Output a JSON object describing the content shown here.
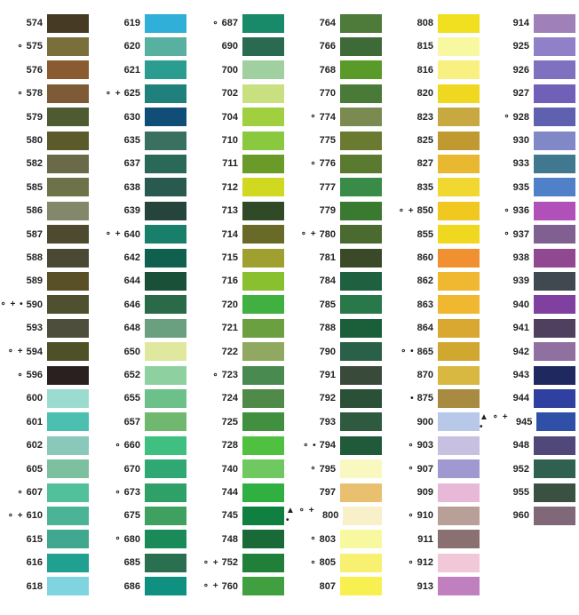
{
  "columns": [
    {
      "rows": [
        {
          "code": "574",
          "color": "#463a24"
        },
        {
          "marks": "∘",
          "code": "575",
          "color": "#7a6e3a"
        },
        {
          "code": "576",
          "color": "#8a5a30"
        },
        {
          "marks": "∘",
          "code": "578",
          "color": "#7e5a36"
        },
        {
          "code": "579",
          "color": "#4e5a30"
        },
        {
          "code": "580",
          "color": "#5a5a2a"
        },
        {
          "code": "582",
          "color": "#6a6a48"
        },
        {
          "code": "585",
          "color": "#6e7248"
        },
        {
          "code": "586",
          "color": "#84886a"
        },
        {
          "code": "587",
          "color": "#4e4a30"
        },
        {
          "code": "588",
          "color": "#4a4a34"
        },
        {
          "code": "589",
          "color": "#5a5028"
        },
        {
          "marks": "∘ + •",
          "code": "590",
          "color": "#4e5030"
        },
        {
          "code": "593",
          "color": "#4e4e3c"
        },
        {
          "marks": "∘ +",
          "code": "594",
          "color": "#4e5028"
        },
        {
          "marks": "∘",
          "code": "596",
          "color": "#2a2020"
        },
        {
          "code": "600",
          "color": "#9cdcd0"
        },
        {
          "code": "601",
          "color": "#4cc0b0"
        },
        {
          "code": "602",
          "color": "#8ac8bc"
        },
        {
          "code": "605",
          "color": "#7cc0a0"
        },
        {
          "marks": "∘",
          "code": "607",
          "color": "#52c09a"
        },
        {
          "marks": "∘ +",
          "code": "610",
          "color": "#4cb496"
        },
        {
          "code": "615",
          "color": "#40a890"
        },
        {
          "code": "616",
          "color": "#20a090"
        },
        {
          "code": "618",
          "color": "#80d4e0"
        }
      ]
    },
    {
      "rows": [
        {
          "code": "619",
          "color": "#30b0d8"
        },
        {
          "code": "620",
          "color": "#58b0a0"
        },
        {
          "code": "621",
          "color": "#2a9c90"
        },
        {
          "marks": "∘ +",
          "code": "625",
          "color": "#20807c"
        },
        {
          "code": "630",
          "color": "#104e78"
        },
        {
          "code": "635",
          "color": "#3a7060"
        },
        {
          "code": "637",
          "color": "#2a6858"
        },
        {
          "code": "638",
          "color": "#285a50"
        },
        {
          "code": "639",
          "color": "#24443c"
        },
        {
          "marks": "∘ +",
          "code": "640",
          "color": "#18806a"
        },
        {
          "code": "642",
          "color": "#106050"
        },
        {
          "code": "644",
          "color": "#1a5038"
        },
        {
          "code": "646",
          "color": "#2a6a48"
        },
        {
          "code": "648",
          "color": "#6aa080"
        },
        {
          "code": "650",
          "color": "#e0e8a0"
        },
        {
          "code": "652",
          "color": "#8ed0a0"
        },
        {
          "code": "655",
          "color": "#6cc08a"
        },
        {
          "code": "657",
          "color": "#70b870"
        },
        {
          "marks": "∘",
          "code": "660",
          "color": "#40c080"
        },
        {
          "code": "670",
          "color": "#30a874"
        },
        {
          "marks": "∘",
          "code": "673",
          "color": "#2ea068"
        },
        {
          "code": "675",
          "color": "#40a060"
        },
        {
          "marks": "∘",
          "code": "680",
          "color": "#1a8a58"
        },
        {
          "code": "685",
          "color": "#2a7050"
        },
        {
          "code": "686",
          "color": "#109080"
        }
      ]
    },
    {
      "rows": [
        {
          "marks": "∘",
          "code": "687",
          "color": "#188a6a"
        },
        {
          "code": "690",
          "color": "#2a6a50"
        },
        {
          "code": "700",
          "color": "#a0d0a0"
        },
        {
          "code": "702",
          "color": "#c8e080"
        },
        {
          "code": "704",
          "color": "#a0d040"
        },
        {
          "code": "710",
          "color": "#8ac840"
        },
        {
          "code": "711",
          "color": "#6a9a28"
        },
        {
          "code": "712",
          "color": "#d0d820"
        },
        {
          "code": "713",
          "color": "#304a28"
        },
        {
          "code": "714",
          "color": "#6a6a28"
        },
        {
          "code": "715",
          "color": "#a0a030"
        },
        {
          "code": "716",
          "color": "#88c030"
        },
        {
          "code": "720",
          "color": "#40b040"
        },
        {
          "code": "721",
          "color": "#6aa040"
        },
        {
          "code": "722",
          "color": "#90a860"
        },
        {
          "marks": "∘",
          "code": "723",
          "color": "#488a50"
        },
        {
          "code": "724",
          "color": "#508a48"
        },
        {
          "code": "725",
          "color": "#409040"
        },
        {
          "code": "728",
          "color": "#50c040"
        },
        {
          "code": "740",
          "color": "#70c860"
        },
        {
          "code": "744",
          "color": "#30b040"
        },
        {
          "code": "745",
          "color": "#108040"
        },
        {
          "code": "748",
          "color": "#1a6a38"
        },
        {
          "marks": "∘ +",
          "code": "752",
          "color": "#20803a"
        },
        {
          "marks": "∘ +",
          "code": "760",
          "color": "#40a040"
        }
      ]
    },
    {
      "rows": [
        {
          "code": "764",
          "color": "#4e7a3a"
        },
        {
          "code": "766",
          "color": "#3e6a38"
        },
        {
          "code": "768",
          "color": "#5a9a28"
        },
        {
          "code": "770",
          "color": "#4a7a38"
        },
        {
          "marks": "∘",
          "code": "774",
          "color": "#7a8a50"
        },
        {
          "code": "775",
          "color": "#6a7a30"
        },
        {
          "marks": "∘",
          "code": "776",
          "color": "#5a7a30"
        },
        {
          "code": "777",
          "color": "#3a8a48"
        },
        {
          "code": "779",
          "color": "#3a7a30"
        },
        {
          "marks": "∘ +",
          "code": "780",
          "color": "#4a6a30"
        },
        {
          "code": "781",
          "color": "#3a4a28"
        },
        {
          "code": "784",
          "color": "#1e6040"
        },
        {
          "code": "785",
          "color": "#28784a"
        },
        {
          "code": "788",
          "color": "#1a5e3a"
        },
        {
          "code": "790",
          "color": "#2a6048"
        },
        {
          "code": "791",
          "color": "#3a4a3a"
        },
        {
          "code": "792",
          "color": "#2a5038"
        },
        {
          "code": "793",
          "color": "#2e5a40"
        },
        {
          "marks": "∘ •",
          "code": "794",
          "color": "#205a3a"
        },
        {
          "marks": "∘",
          "code": "795",
          "color": "#f8f8c0"
        },
        {
          "code": "797",
          "color": "#e8c070"
        },
        {
          "marks": "▲ ∘ + •",
          "code": "800",
          "color": "#f8f0c8"
        },
        {
          "marks": "∘",
          "code": "803",
          "color": "#f8f8a0"
        },
        {
          "marks": "∘",
          "code": "805",
          "color": "#f8f070"
        },
        {
          "code": "807",
          "color": "#f8f050"
        }
      ]
    },
    {
      "rows": [
        {
          "code": "808",
          "color": "#f0e020"
        },
        {
          "code": "815",
          "color": "#f8f8a0"
        },
        {
          "code": "816",
          "color": "#f8f080"
        },
        {
          "code": "820",
          "color": "#f0d820"
        },
        {
          "code": "823",
          "color": "#c8a840"
        },
        {
          "code": "825",
          "color": "#c09a30"
        },
        {
          "code": "827",
          "color": "#e8b830"
        },
        {
          "code": "835",
          "color": "#f0d830"
        },
        {
          "marks": "∘ +",
          "code": "850",
          "color": "#f0c820"
        },
        {
          "code": "855",
          "color": "#f0d820"
        },
        {
          "code": "860",
          "color": "#f09030"
        },
        {
          "code": "862",
          "color": "#f0b830"
        },
        {
          "code": "863",
          "color": "#f0b830"
        },
        {
          "code": "864",
          "color": "#d8a830"
        },
        {
          "marks": "∘ •",
          "code": "865",
          "color": "#d0a830"
        },
        {
          "code": "870",
          "color": "#d8b840"
        },
        {
          "marks": "•",
          "code": "875",
          "color": "#a88a40"
        },
        {
          "code": "900",
          "color": "#b8c8e8"
        },
        {
          "marks": "∘",
          "code": "903",
          "color": "#c8c0e0"
        },
        {
          "marks": "∘",
          "code": "907",
          "color": "#a098d0"
        },
        {
          "code": "909",
          "color": "#e8b8d8"
        },
        {
          "marks": "∘",
          "code": "910",
          "color": "#b8a098"
        },
        {
          "code": "911",
          "color": "#8a7070"
        },
        {
          "marks": "∘",
          "code": "912",
          "color": "#f0c8d8"
        },
        {
          "code": "913",
          "color": "#c080c0"
        }
      ]
    },
    {
      "rows": [
        {
          "code": "914",
          "color": "#a080b8"
        },
        {
          "code": "925",
          "color": "#9080c8"
        },
        {
          "code": "926",
          "color": "#8070c0"
        },
        {
          "code": "927",
          "color": "#7060b8"
        },
        {
          "marks": "∘",
          "code": "928",
          "color": "#6060b0"
        },
        {
          "code": "930",
          "color": "#8088c8"
        },
        {
          "code": "933",
          "color": "#407890"
        },
        {
          "code": "935",
          "color": "#5080c8"
        },
        {
          "marks": "∘",
          "code": "936",
          "color": "#b050b8"
        },
        {
          "marks": "∘",
          "code": "937",
          "color": "#806090"
        },
        {
          "code": "938",
          "color": "#904890"
        },
        {
          "code": "939",
          "color": "#404850"
        },
        {
          "code": "940",
          "color": "#8040a0"
        },
        {
          "code": "941",
          "color": "#504060"
        },
        {
          "code": "942",
          "color": "#9070a0"
        },
        {
          "code": "943",
          "color": "#202860"
        },
        {
          "code": "944",
          "color": "#3040a0"
        },
        {
          "marks": "▲ ∘ + •",
          "code": "945",
          "color": "#3050a8"
        },
        {
          "code": "948",
          "color": "#504878"
        },
        {
          "code": "952",
          "color": "#306050"
        },
        {
          "code": "955",
          "color": "#3a5040"
        },
        {
          "code": "960",
          "color": "#806878"
        }
      ]
    }
  ]
}
